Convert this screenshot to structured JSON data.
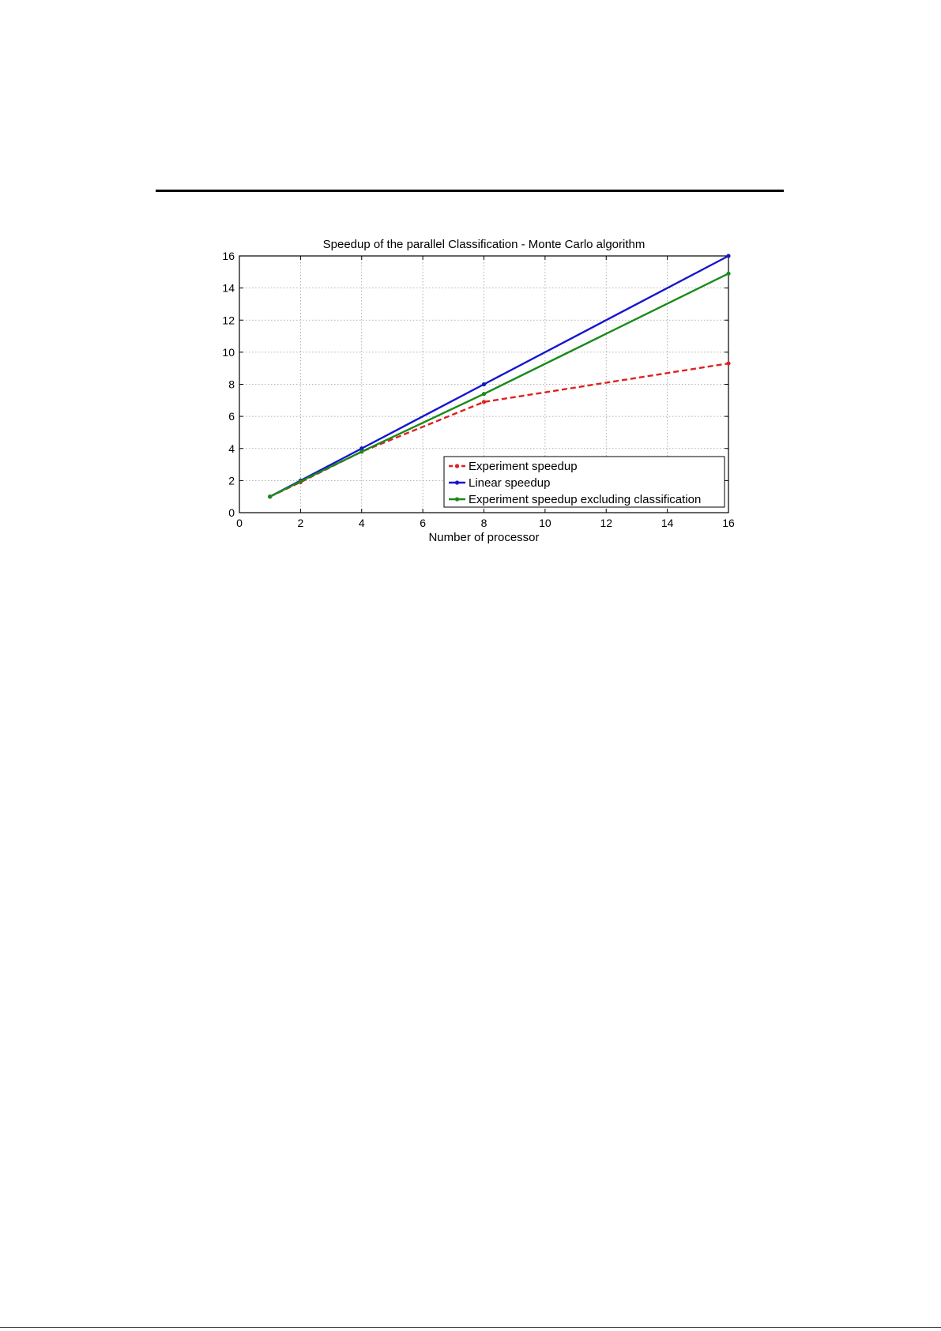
{
  "chart_data": {
    "type": "line",
    "title": "Speedup of the parallel Classification - Monte Carlo algorithm",
    "xlabel": "Number of processor",
    "ylabel": "",
    "xlim": [
      0,
      16
    ],
    "ylim": [
      0,
      16
    ],
    "xticks": [
      0,
      2,
      4,
      6,
      8,
      10,
      12,
      14,
      16
    ],
    "yticks": [
      0,
      2,
      4,
      6,
      8,
      10,
      12,
      14,
      16
    ],
    "grid": true,
    "legend_position": "bottom-right",
    "series": [
      {
        "name": "Experiment speedup",
        "color": "#e02020",
        "line_style": "dashed",
        "x": [
          1,
          2,
          4,
          8,
          16
        ],
        "y": [
          1.0,
          1.9,
          3.8,
          6.9,
          9.3
        ]
      },
      {
        "name": "Linear speedup",
        "color": "#1515d0",
        "line_style": "solid",
        "x": [
          1,
          2,
          4,
          8,
          16
        ],
        "y": [
          1,
          2,
          4,
          8,
          16
        ]
      },
      {
        "name": "Experiment speedup excluding classification",
        "color": "#1a8a1a",
        "line_style": "solid",
        "x": [
          1,
          2,
          4,
          8,
          16
        ],
        "y": [
          1.0,
          1.95,
          3.8,
          7.4,
          14.9
        ]
      }
    ]
  }
}
